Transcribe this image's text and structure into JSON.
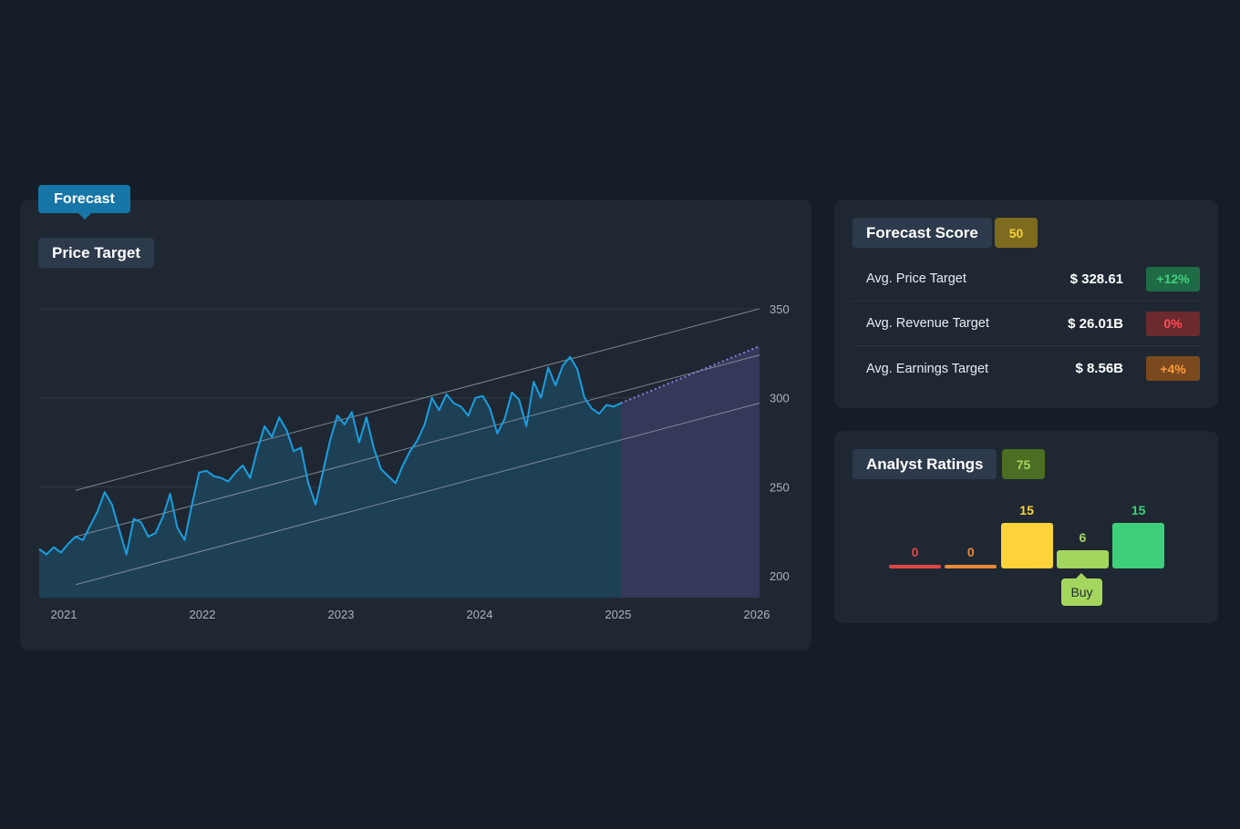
{
  "header": {
    "tab_label": "Forecast"
  },
  "price_target": {
    "title": "Price Target"
  },
  "forecast_score": {
    "title": "Forecast Score",
    "score": "50",
    "score_color": "#7d6b1e",
    "score_text_color": "#f5d33a",
    "metrics": [
      {
        "label": "Avg. Price Target",
        "value": "$ 328.61",
        "change": "+12%",
        "change_bg": "#1f6b45",
        "change_color": "#40d07e"
      },
      {
        "label": "Avg. Revenue Target",
        "value": "$ 26.01B",
        "change": "0%",
        "change_bg": "#6b2a2e",
        "change_color": "#ff4d57"
      },
      {
        "label": "Avg. Earnings Target",
        "value": "$ 8.56B",
        "change": "+4%",
        "change_bg": "#7a4a1e",
        "change_color": "#ff9b3d"
      }
    ]
  },
  "analyst_ratings": {
    "title": "Analyst Ratings",
    "score": "75",
    "score_color": "#4b6e23",
    "score_text_color": "#a4d65e",
    "bars": [
      {
        "count": "0",
        "value": 0,
        "color": "#e04848"
      },
      {
        "count": "0",
        "value": 0,
        "color": "#e58a3a"
      },
      {
        "count": "15",
        "value": 15,
        "color": "#fdd33a"
      },
      {
        "count": "6",
        "value": 6,
        "color": "#a4d65e"
      },
      {
        "count": "15",
        "value": 15,
        "color": "#3ecf7a"
      }
    ],
    "selected_label": "Buy"
  },
  "chart_data": {
    "type": "line",
    "x_ticks": [
      "2021",
      "2022",
      "2023",
      "2024",
      "2025",
      "2026"
    ],
    "y_ticks": [
      "200",
      "250",
      "300",
      "350"
    ],
    "ylim": [
      188,
      350
    ],
    "xlim": [
      2021,
      2026.2
    ],
    "grid": true,
    "series": [
      {
        "values_x": [
          2021.0,
          2021.05,
          2021.1,
          2021.15,
          2021.2,
          2021.25,
          2021.3,
          2021.35,
          2021.4,
          2021.45,
          2021.5,
          2021.55,
          2021.6,
          2021.65,
          2021.7,
          2021.75,
          2021.8,
          2021.85,
          2021.9,
          2021.95,
          2022.0,
          2022.05,
          2022.1,
          2022.15,
          2022.2,
          2022.25,
          2022.3,
          2022.35,
          2022.4,
          2022.45,
          2022.5,
          2022.55,
          2022.6,
          2022.65,
          2022.7,
          2022.75,
          2022.8,
          2022.85,
          2022.9,
          2022.95,
          2023.0,
          2023.05,
          2023.1,
          2023.15,
          2023.2,
          2023.25,
          2023.3,
          2023.35,
          2023.4,
          2023.45,
          2023.5,
          2023.55,
          2023.6,
          2023.65,
          2023.7,
          2023.75,
          2023.8,
          2023.85,
          2023.9,
          2023.95,
          2024.0,
          2024.05,
          2024.1,
          2024.15,
          2024.2,
          2024.25,
          2024.3,
          2024.35,
          2024.4,
          2024.45,
          2024.5,
          2024.55,
          2024.6,
          2024.65,
          2024.7,
          2024.75,
          2024.8,
          2024.85,
          2024.9,
          2024.95,
          2025.0
        ],
        "values_y": [
          215,
          212,
          216,
          213,
          218,
          222,
          220,
          228,
          236,
          247,
          240,
          226,
          212,
          232,
          230,
          222,
          224,
          233,
          246,
          227,
          220,
          240,
          258,
          259,
          256,
          255,
          253,
          258,
          262,
          255,
          271,
          284,
          278,
          289,
          282,
          270,
          272,
          252,
          240,
          258,
          276,
          290,
          285,
          292,
          275,
          289,
          272,
          260,
          256,
          252,
          262,
          270,
          276,
          285,
          300,
          293,
          302,
          297,
          295,
          290,
          300,
          301,
          294,
          280,
          288,
          303,
          299,
          284,
          309,
          300,
          317,
          307,
          318,
          323,
          316,
          300,
          294,
          291,
          296,
          295,
          297
        ]
      }
    ],
    "forecast": {
      "x": [
        2025.0,
        2026.0
      ],
      "y": [
        297,
        329
      ]
    },
    "channel": {
      "x": [
        2021.25,
        2026.0
      ],
      "upper": [
        248,
        350
      ],
      "mid": [
        222,
        324
      ],
      "lower": [
        195,
        297
      ]
    }
  }
}
